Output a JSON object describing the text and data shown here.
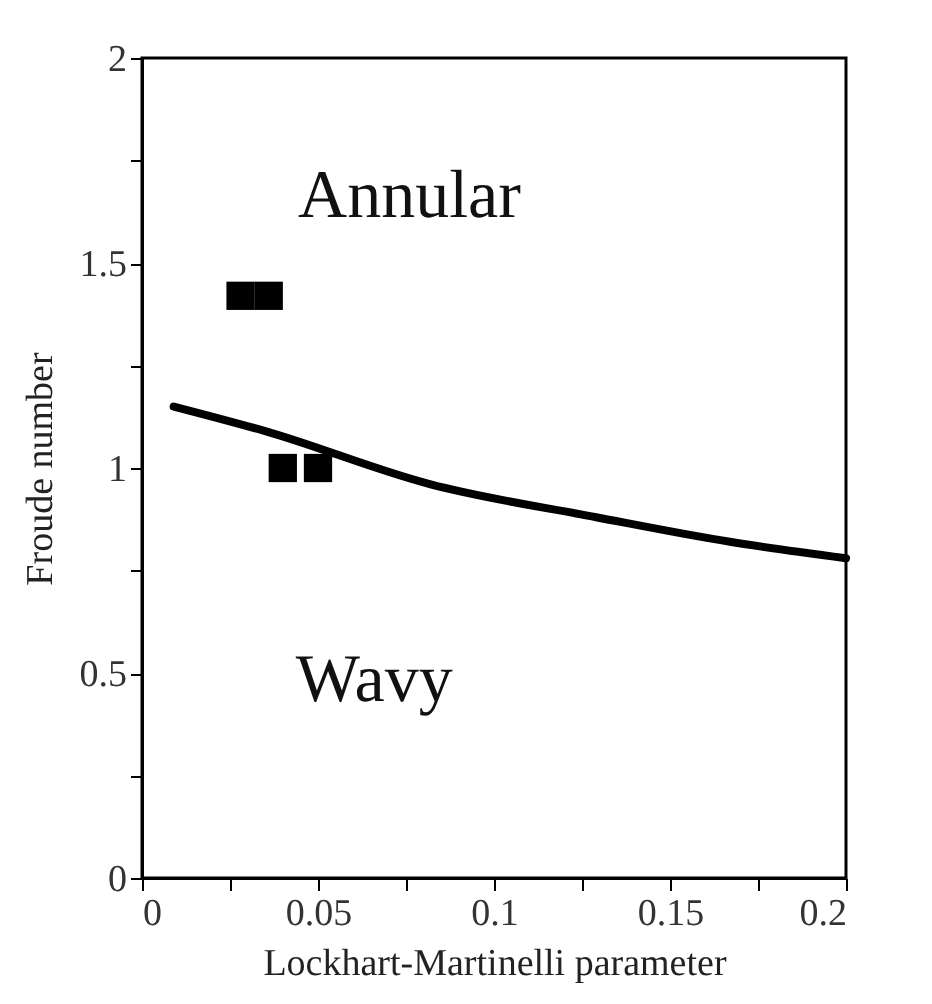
{
  "chart_data": {
    "type": "scatter",
    "xlabel": "Lockhart-Martinelli parameter",
    "ylabel": "Froude number",
    "xlim": [
      0,
      0.2
    ],
    "ylim": [
      0,
      2
    ],
    "xticks": [
      0,
      {
        "value": 0.025,
        "label": null
      },
      0.05,
      {
        "value": 0.075,
        "label": null
      },
      0.1,
      {
        "value": 0.125,
        "label": null
      },
      0.15,
      {
        "value": 0.175,
        "label": null
      },
      0.2
    ],
    "yticks": [
      0,
      {
        "value": 0.25,
        "label": null
      },
      0.5,
      {
        "value": 0.75,
        "label": null
      },
      1,
      {
        "value": 1.25,
        "label": null
      },
      1.5,
      {
        "value": 1.75,
        "label": null
      },
      2
    ],
    "grid": false,
    "marker": "square",
    "series": [
      {
        "color": "#000000",
        "x": [
          0.028,
          0.036,
          0.04,
          0.05
        ],
        "values": [
          1.42,
          1.42,
          1.0,
          1.0
        ]
      },
      {
        "type": "line",
        "color": "#000000",
        "marker": "none",
        "line_style": "solid",
        "x": [
          0.009,
          0.035,
          0.082,
          0.129,
          0.167,
          0.2
        ],
        "values": [
          1.15,
          1.09,
          0.96,
          0.88,
          0.82,
          0.78
        ]
      }
    ],
    "annotations": [
      "Annular",
      "Wavy"
    ]
  }
}
